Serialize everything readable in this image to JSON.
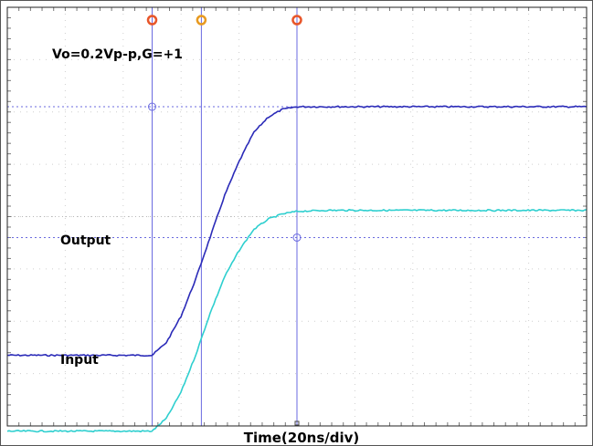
{
  "chart_data": {
    "type": "line",
    "title": "Vo=0.2Vp-p,G=+1",
    "xlabel": "Time(20ns/div)",
    "ylabel": "",
    "x_unit": "ns",
    "x_per_div": 20,
    "x_divisions": 10,
    "y_divisions": 8,
    "grid": true,
    "series": [
      {
        "name": "Output",
        "color": "#2b2bb8",
        "x": [
          0,
          40,
          50,
          55,
          60,
          65,
          70,
          75,
          80,
          85,
          90,
          95,
          100,
          110,
          200
        ],
        "y": [
          1.35,
          1.35,
          1.35,
          1.6,
          2.1,
          2.8,
          3.6,
          4.4,
          5.05,
          5.6,
          5.9,
          6.05,
          6.1,
          6.1,
          6.1
        ]
      },
      {
        "name": "Input",
        "color": "#2ecfcf",
        "x": [
          0,
          40,
          50,
          55,
          60,
          65,
          70,
          75,
          80,
          85,
          90,
          95,
          100,
          110,
          200
        ],
        "y": [
          -0.1,
          -0.1,
          -0.1,
          0.15,
          0.65,
          1.35,
          2.15,
          2.85,
          3.35,
          3.75,
          3.95,
          4.05,
          4.1,
          4.12,
          4.12
        ]
      }
    ],
    "cursors_ns": [
      50,
      67,
      100
    ],
    "cursor_markers": [
      {
        "label": "o",
        "color": "#e8562a"
      },
      {
        "label": "o",
        "color": "#e89a20"
      },
      {
        "label": "o",
        "color": "#e8562a"
      }
    ],
    "horizontal_cursor_values": [
      6.1,
      3.6
    ]
  }
}
